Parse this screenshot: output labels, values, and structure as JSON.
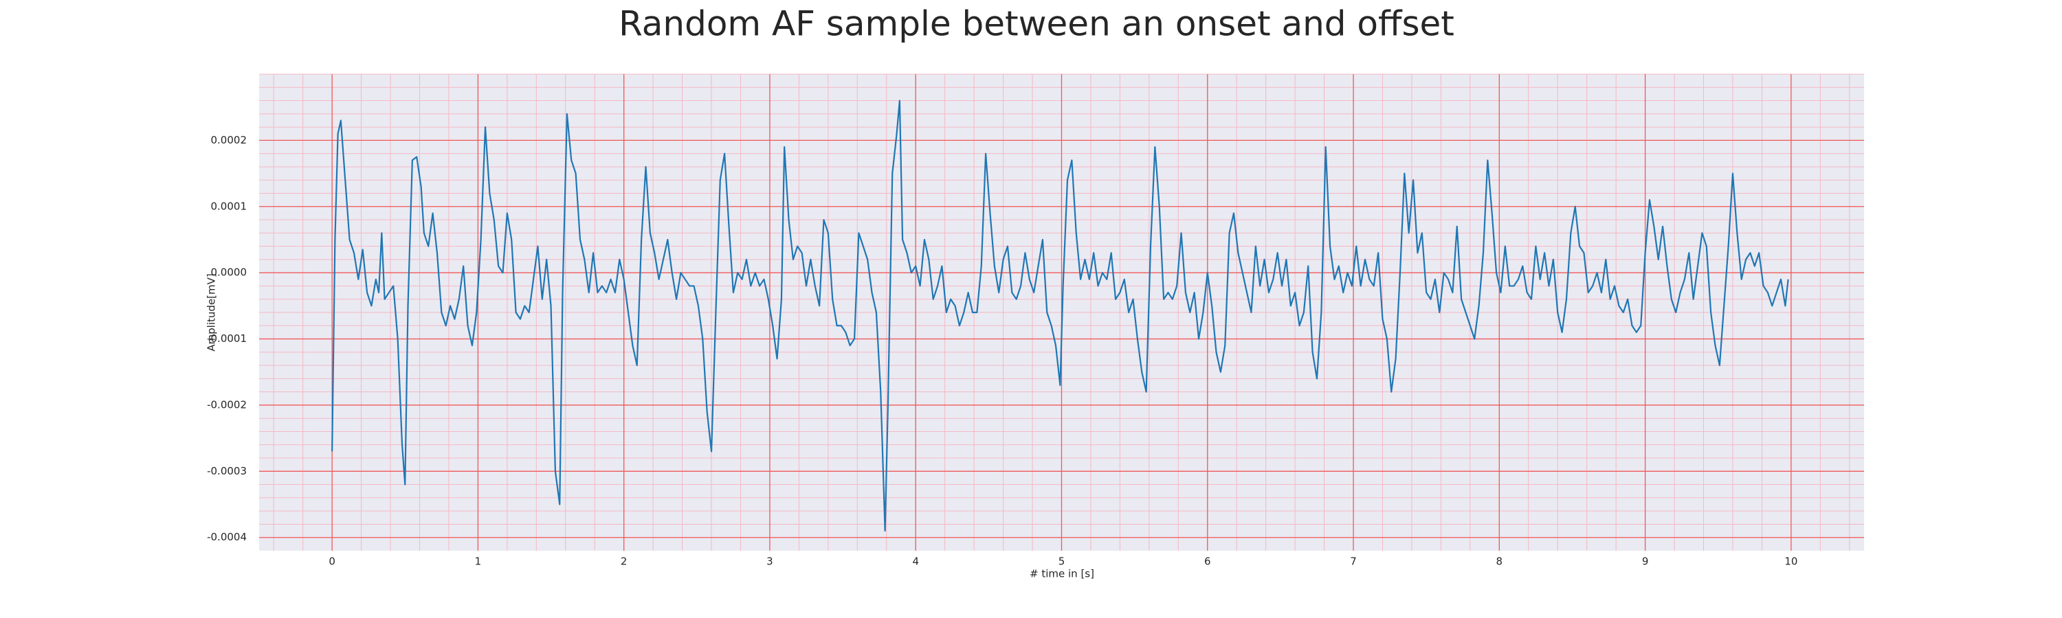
{
  "chart_data": {
    "type": "line",
    "title": "Random AF sample between an onset and offset",
    "x_label": "# time in [s]",
    "y_label": "Amplitude[mV]",
    "color": "#1f77b4",
    "grid": true,
    "minor_grid": true,
    "xlim": [
      -0.5,
      10.5
    ],
    "xticks": [
      0,
      1,
      2,
      3,
      4,
      5,
      6,
      7,
      8,
      9,
      10
    ],
    "ylim": [
      -0.00042,
      0.0003
    ],
    "yticks": [
      -0.0004,
      -0.0003,
      -0.0002,
      -0.0001,
      {
        "value": 0,
        "label": "0.0000"
      },
      0.0001,
      0.0002
    ],
    "x": [
      0.0,
      0.02,
      0.04,
      0.06,
      0.09,
      0.12,
      0.15,
      0.18,
      0.21,
      0.24,
      0.27,
      0.3,
      0.32,
      0.34,
      0.36,
      0.39,
      0.42,
      0.45,
      0.48,
      0.5,
      0.52,
      0.55,
      0.58,
      0.61,
      0.63,
      0.66,
      0.69,
      0.72,
      0.75,
      0.78,
      0.81,
      0.84,
      0.87,
      0.9,
      0.93,
      0.96,
      0.99,
      1.02,
      1.05,
      1.08,
      1.11,
      1.14,
      1.17,
      1.2,
      1.23,
      1.26,
      1.29,
      1.32,
      1.35,
      1.38,
      1.41,
      1.44,
      1.47,
      1.5,
      1.53,
      1.56,
      1.58,
      1.61,
      1.64,
      1.67,
      1.7,
      1.73,
      1.76,
      1.79,
      1.82,
      1.85,
      1.88,
      1.91,
      1.94,
      1.97,
      2.0,
      2.03,
      2.06,
      2.09,
      2.12,
      2.15,
      2.18,
      2.21,
      2.24,
      2.27,
      2.3,
      2.33,
      2.36,
      2.39,
      2.42,
      2.45,
      2.48,
      2.51,
      2.54,
      2.57,
      2.6,
      2.63,
      2.66,
      2.69,
      2.72,
      2.75,
      2.78,
      2.81,
      2.84,
      2.87,
      2.9,
      2.93,
      2.96,
      2.99,
      3.02,
      3.05,
      3.08,
      3.1,
      3.13,
      3.16,
      3.19,
      3.22,
      3.25,
      3.28,
      3.31,
      3.34,
      3.37,
      3.4,
      3.43,
      3.46,
      3.49,
      3.52,
      3.55,
      3.58,
      3.61,
      3.64,
      3.67,
      3.7,
      3.73,
      3.76,
      3.79,
      3.81,
      3.84,
      3.87,
      3.89,
      3.91,
      3.94,
      3.97,
      4.0,
      4.03,
      4.06,
      4.09,
      4.12,
      4.15,
      4.18,
      4.21,
      4.24,
      4.27,
      4.3,
      4.33,
      4.36,
      4.39,
      4.42,
      4.45,
      4.48,
      4.51,
      4.54,
      4.57,
      4.6,
      4.63,
      4.66,
      4.69,
      4.72,
      4.75,
      4.78,
      4.81,
      4.84,
      4.87,
      4.9,
      4.93,
      4.96,
      4.99,
      5.01,
      5.04,
      5.07,
      5.1,
      5.13,
      5.16,
      5.19,
      5.22,
      5.25,
      5.28,
      5.31,
      5.34,
      5.37,
      5.4,
      5.43,
      5.46,
      5.49,
      5.52,
      5.55,
      5.58,
      5.61,
      5.64,
      5.67,
      5.7,
      5.73,
      5.76,
      5.79,
      5.82,
      5.85,
      5.88,
      5.91,
      5.94,
      5.97,
      6.0,
      6.03,
      6.06,
      6.09,
      6.12,
      6.15,
      6.18,
      6.21,
      6.24,
      6.27,
      6.3,
      6.33,
      6.36,
      6.39,
      6.42,
      6.45,
      6.48,
      6.51,
      6.54,
      6.57,
      6.6,
      6.63,
      6.66,
      6.69,
      6.72,
      6.75,
      6.78,
      6.81,
      6.84,
      6.87,
      6.9,
      6.93,
      6.96,
      6.99,
      7.02,
      7.05,
      7.08,
      7.11,
      7.14,
      7.17,
      7.2,
      7.23,
      7.26,
      7.29,
      7.32,
      7.35,
      7.38,
      7.41,
      7.44,
      7.47,
      7.5,
      7.53,
      7.56,
      7.59,
      7.62,
      7.65,
      7.68,
      7.71,
      7.74,
      7.77,
      7.8,
      7.83,
      7.86,
      7.89,
      7.92,
      7.95,
      7.98,
      8.01,
      8.04,
      8.07,
      8.1,
      8.13,
      8.16,
      8.19,
      8.22,
      8.25,
      8.28,
      8.31,
      8.34,
      8.37,
      8.4,
      8.43,
      8.46,
      8.49,
      8.52,
      8.55,
      8.58,
      8.61,
      8.64,
      8.67,
      8.7,
      8.73,
      8.76,
      8.79,
      8.82,
      8.85,
      8.88,
      8.91,
      8.94,
      8.97,
      9.0,
      9.03,
      9.06,
      9.09,
      9.12,
      9.15,
      9.18,
      9.21,
      9.24,
      9.27,
      9.3,
      9.33,
      9.36,
      9.39,
      9.42,
      9.45,
      9.48,
      9.51,
      9.54,
      9.57,
      9.6,
      9.63,
      9.66,
      9.69,
      9.72,
      9.75,
      9.78,
      9.81,
      9.84,
      9.87,
      9.9,
      9.93,
      9.96,
      9.98
    ],
    "values": [
      -0.00027,
      5e-05,
      0.00021,
      0.00023,
      0.00014,
      5e-05,
      3e-05,
      -1e-05,
      3.5e-05,
      -3e-05,
      -5e-05,
      -1e-05,
      -3e-05,
      6e-05,
      -4e-05,
      -3e-05,
      -2e-05,
      -0.0001,
      -0.00026,
      -0.00032,
      -5e-05,
      0.00017,
      0.000175,
      0.00013,
      6e-05,
      4e-05,
      9e-05,
      3e-05,
      -6e-05,
      -8e-05,
      -5e-05,
      -7e-05,
      -4e-05,
      1e-05,
      -8e-05,
      -0.00011,
      -6e-05,
      5e-05,
      0.00022,
      0.00012,
      8e-05,
      1e-05,
      0,
      9e-05,
      5e-05,
      -6e-05,
      -7e-05,
      -5e-05,
      -6e-05,
      -1e-05,
      4e-05,
      -4e-05,
      2e-05,
      -5e-05,
      -0.0003,
      -0.00035,
      -3e-05,
      0.00024,
      0.00017,
      0.00015,
      5e-05,
      2e-05,
      -3e-05,
      3e-05,
      -3e-05,
      -2e-05,
      -3e-05,
      -1e-05,
      -3e-05,
      2e-05,
      -1e-05,
      -6e-05,
      -0.00011,
      -0.00014,
      5e-05,
      0.00016,
      6e-05,
      3e-05,
      -1e-05,
      2e-05,
      5e-05,
      0,
      -4e-05,
      0,
      -1e-05,
      -2e-05,
      -2e-05,
      -5e-05,
      -0.0001,
      -0.00021,
      -0.00027,
      -6e-05,
      0.00014,
      0.00018,
      7e-05,
      -3e-05,
      0,
      -1e-05,
      2e-05,
      -2e-05,
      0,
      -2e-05,
      -1e-05,
      -4e-05,
      -8e-05,
      -0.00013,
      -4e-05,
      0.00019,
      8e-05,
      2e-05,
      4e-05,
      3e-05,
      -2e-05,
      2e-05,
      -2e-05,
      -5e-05,
      8e-05,
      6e-05,
      -4e-05,
      -8e-05,
      -8e-05,
      -9e-05,
      -0.00011,
      -0.0001,
      6e-05,
      4e-05,
      2e-05,
      -3e-05,
      -6e-05,
      -0.00018,
      -0.00039,
      -0.0002,
      0.00015,
      0.00021,
      0.00026,
      5e-05,
      3e-05,
      0,
      1e-05,
      -2e-05,
      5e-05,
      2e-05,
      -4e-05,
      -2e-05,
      1e-05,
      -6e-05,
      -4e-05,
      -5e-05,
      -8e-05,
      -6e-05,
      -3e-05,
      -6e-05,
      -6e-05,
      1e-05,
      0.00018,
      9e-05,
      1e-05,
      -3e-05,
      2e-05,
      4e-05,
      -3e-05,
      -4e-05,
      -2e-05,
      3e-05,
      -1e-05,
      -3e-05,
      1e-05,
      5e-05,
      -6e-05,
      -8e-05,
      -0.00011,
      -0.00017,
      -2e-05,
      0.00014,
      0.00017,
      6e-05,
      -1e-05,
      2e-05,
      -1e-05,
      3e-05,
      -2e-05,
      0,
      -1e-05,
      3e-05,
      -4e-05,
      -3e-05,
      -1e-05,
      -6e-05,
      -4e-05,
      -0.0001,
      -0.00015,
      -0.00018,
      4e-05,
      0.00019,
      0.0001,
      -4e-05,
      -3e-05,
      -4e-05,
      -2e-05,
      6e-05,
      -3e-05,
      -6e-05,
      -3e-05,
      -0.0001,
      -6e-05,
      0,
      -5e-05,
      -0.00012,
      -0.00015,
      -0.00011,
      6e-05,
      9e-05,
      3e-05,
      0,
      -3e-05,
      -6e-05,
      4e-05,
      -2e-05,
      2e-05,
      -3e-05,
      -1e-05,
      3e-05,
      -2e-05,
      2e-05,
      -5e-05,
      -3e-05,
      -8e-05,
      -6e-05,
      1e-05,
      -0.00012,
      -0.00016,
      -6e-05,
      0.00019,
      4e-05,
      -1e-05,
      1e-05,
      -3e-05,
      0,
      -2e-05,
      4e-05,
      -2e-05,
      2e-05,
      -1e-05,
      -2e-05,
      3e-05,
      -7e-05,
      -0.0001,
      -0.00018,
      -0.00013,
      0,
      0.00015,
      6e-05,
      0.00014,
      3e-05,
      6e-05,
      -3e-05,
      -4e-05,
      -1e-05,
      -6e-05,
      0,
      -1e-05,
      -3e-05,
      7e-05,
      -4e-05,
      -6e-05,
      -8e-05,
      -0.0001,
      -5e-05,
      3e-05,
      0.00017,
      9e-05,
      0,
      -3e-05,
      4e-05,
      -2e-05,
      -2e-05,
      -1e-05,
      1e-05,
      -3e-05,
      -4e-05,
      4e-05,
      -1e-05,
      3e-05,
      -2e-05,
      2e-05,
      -6e-05,
      -9e-05,
      -4e-05,
      6e-05,
      0.0001,
      4e-05,
      3e-05,
      -3e-05,
      -2e-05,
      0,
      -3e-05,
      2e-05,
      -4e-05,
      -2e-05,
      -5e-05,
      -6e-05,
      -4e-05,
      -8e-05,
      -9e-05,
      -8e-05,
      3e-05,
      0.00011,
      7e-05,
      2e-05,
      7e-05,
      1e-05,
      -4e-05,
      -6e-05,
      -3e-05,
      -1e-05,
      3e-05,
      -4e-05,
      1e-05,
      6e-05,
      4e-05,
      -6e-05,
      -0.00011,
      -0.00014,
      -5e-05,
      4e-05,
      0.00015,
      6e-05,
      -1e-05,
      2e-05,
      3e-05,
      1e-05,
      3e-05,
      -2e-05,
      -3e-05,
      -5e-05,
      -3e-05,
      -1e-05,
      -5e-05,
      -1e-05
    ]
  }
}
